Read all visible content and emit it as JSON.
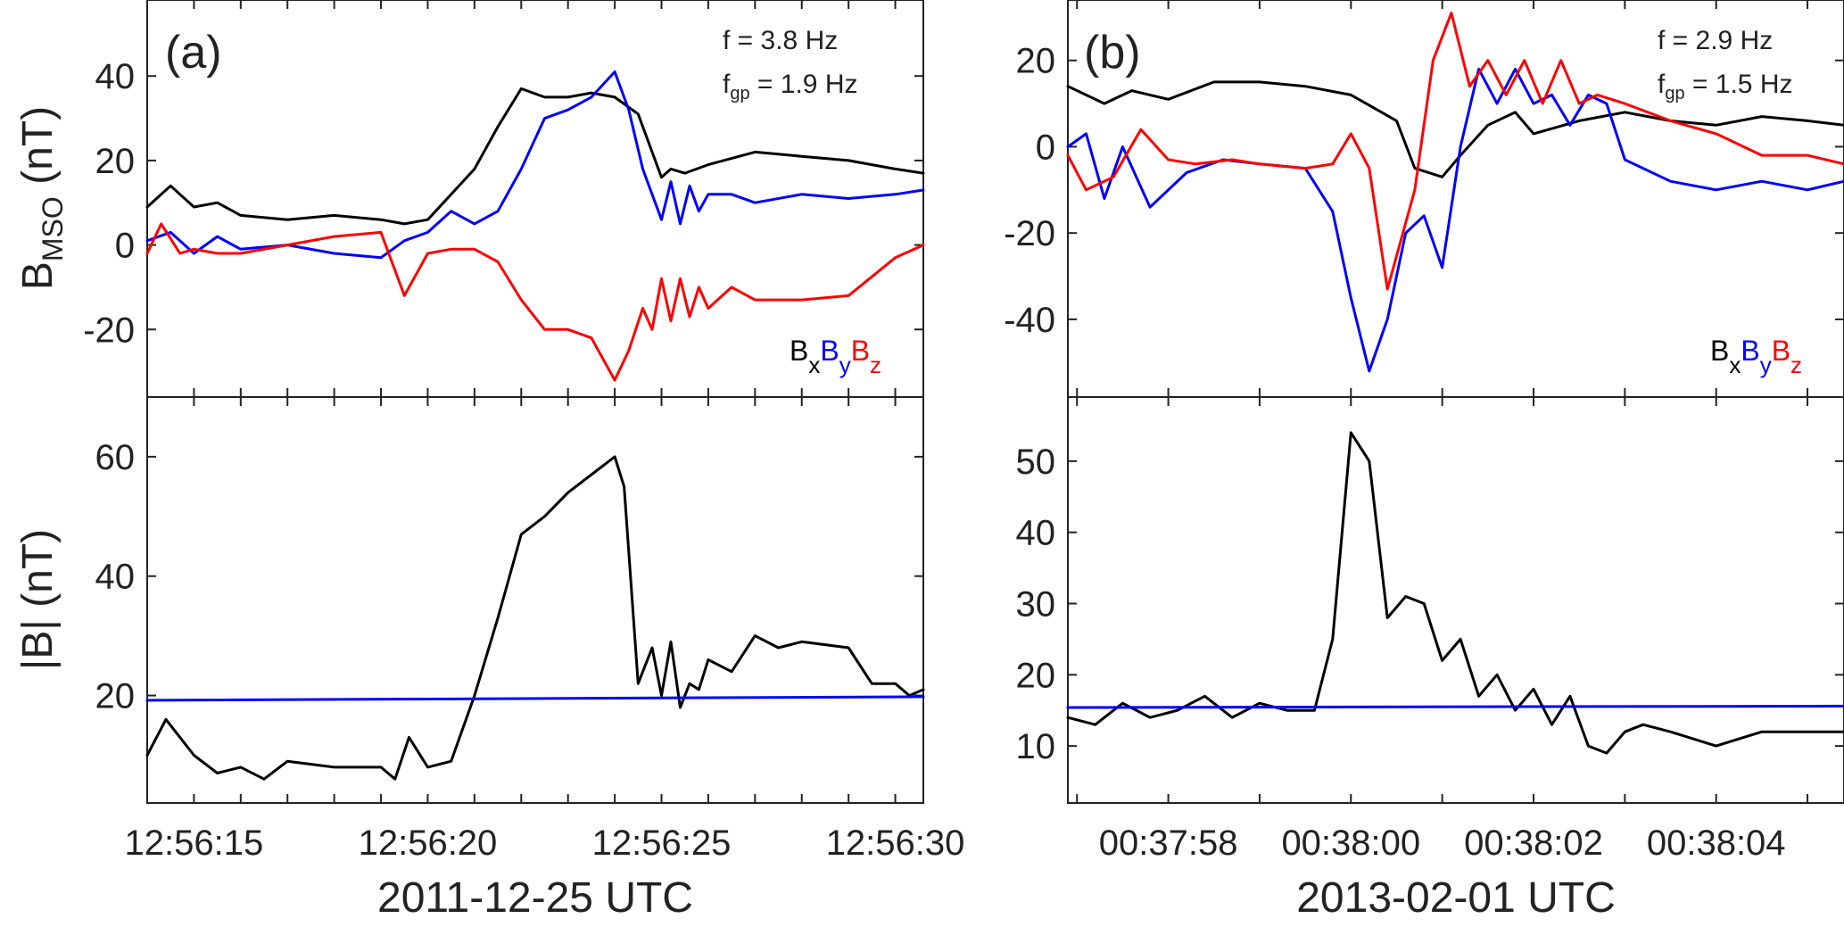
{
  "figure": {
    "colors": {
      "bx": "#000000",
      "by": "#0000ff",
      "bz": "#ff0000",
      "ref": "#0000ff",
      "axis": "#222222"
    }
  },
  "chart_data": [
    {
      "id": "a_top",
      "type": "line",
      "panel_label": "(a)",
      "ylabel_main": "B",
      "ylabel_sub": "MSO",
      "ylabel_unit": " (nT)",
      "xlim": [
        14,
        30.6
      ],
      "ylim": [
        -36,
        58
      ],
      "yticks": [
        -20,
        0,
        20,
        40
      ],
      "xticks": [
        15,
        20,
        25,
        30
      ],
      "annotations": {
        "f": "f = 3.8 Hz",
        "fgp_prefix": "f",
        "fgp_sub": "gp",
        "fgp_value": " = 1.9 Hz"
      },
      "legend": {
        "b1": "B",
        "s1": "x",
        "b2": "B",
        "s2": "y",
        "b3": "B",
        "s3": "z"
      },
      "series": [
        {
          "name": "Bx",
          "color": "#000000",
          "x": [
            14,
            14.5,
            15,
            15.5,
            16,
            17,
            18,
            19,
            19.5,
            20,
            20.5,
            21,
            21.5,
            22,
            22.5,
            23,
            23.5,
            24,
            24.5,
            24.8,
            25,
            25.2,
            25.5,
            26,
            27,
            28,
            29,
            30,
            30.6
          ],
          "y": [
            9,
            14,
            9,
            10,
            7,
            6,
            7,
            6,
            5,
            6,
            12,
            18,
            28,
            37,
            35,
            35,
            36,
            35,
            31,
            22,
            16,
            18,
            17,
            19,
            22,
            21,
            20,
            18,
            17
          ]
        },
        {
          "name": "By",
          "color": "#0000ff",
          "x": [
            14,
            14.5,
            15,
            15.5,
            16,
            17,
            18,
            19,
            19.5,
            20,
            20.5,
            21,
            21.5,
            22,
            22.5,
            23,
            23.5,
            24,
            24.3,
            24.6,
            24.8,
            25,
            25.2,
            25.4,
            25.6,
            25.8,
            26,
            26.5,
            27,
            28,
            29,
            30,
            30.6
          ],
          "y": [
            1,
            3,
            -2,
            2,
            -1,
            0,
            -2,
            -3,
            1,
            3,
            8,
            5,
            8,
            18,
            30,
            32,
            35,
            41,
            32,
            18,
            12,
            6,
            15,
            5,
            14,
            8,
            12,
            12,
            10,
            12,
            11,
            12,
            13
          ]
        },
        {
          "name": "Bz",
          "color": "#ff0000",
          "x": [
            14,
            14.3,
            14.7,
            15,
            15.5,
            16,
            17,
            18,
            19,
            19.5,
            20,
            20.5,
            21,
            21.5,
            22,
            22.5,
            23,
            23.5,
            24,
            24.3,
            24.6,
            24.8,
            25,
            25.2,
            25.4,
            25.6,
            25.8,
            26,
            26.5,
            27,
            28,
            29,
            30,
            30.6
          ],
          "y": [
            -2,
            5,
            -2,
            -1,
            -2,
            -2,
            0,
            2,
            3,
            -12,
            -2,
            -1,
            -1,
            -4,
            -13,
            -20,
            -20,
            -22,
            -32,
            -25,
            -15,
            -20,
            -8,
            -18,
            -8,
            -17,
            -10,
            -15,
            -10,
            -13,
            -13,
            -12,
            -3,
            0
          ]
        }
      ]
    },
    {
      "id": "a_bottom",
      "type": "line",
      "ylabel": "|B| (nT)",
      "xlim": [
        14,
        30.6
      ],
      "ylim": [
        2,
        70
      ],
      "yticks": [
        20,
        40,
        60
      ],
      "xticks": [
        15,
        20,
        25,
        30
      ],
      "xticklabels": [
        "12:56:15",
        "12:56:20",
        "12:56:25",
        "12:56:30"
      ],
      "xlabel": "2011-12-25 UTC",
      "series": [
        {
          "name": "|B|",
          "color": "#000000",
          "x": [
            14,
            14.4,
            14.8,
            15,
            15.5,
            16,
            16.5,
            17,
            18,
            19,
            19.3,
            19.6,
            20,
            20.5,
            21,
            21.5,
            22,
            22.5,
            23,
            23.5,
            24,
            24.2,
            24.5,
            24.8,
            25,
            25.2,
            25.4,
            25.6,
            25.8,
            26,
            26.5,
            27,
            27.5,
            28,
            29,
            29.5,
            30,
            30.3,
            30.6
          ],
          "y": [
            10,
            16,
            12,
            10,
            7,
            8,
            6,
            9,
            8,
            8,
            6,
            13,
            8,
            9,
            20,
            33,
            47,
            50,
            54,
            57,
            60,
            55,
            22,
            28,
            20,
            29,
            18,
            22,
            21,
            26,
            24,
            30,
            28,
            29,
            28,
            22,
            22,
            20,
            21
          ]
        },
        {
          "name": "reference",
          "color": "#0000ff",
          "x": [
            14,
            30.6
          ],
          "y": [
            19.2,
            19.8
          ]
        }
      ]
    },
    {
      "id": "b_top",
      "type": "line",
      "panel_label": "(b)",
      "xlim": [
        56.9,
        65.4
      ],
      "ylim": [
        -58,
        34
      ],
      "yticks": [
        -40,
        -20,
        0,
        20
      ],
      "xticks": [
        58,
        60,
        62,
        64
      ],
      "annotations": {
        "f": "f = 2.9 Hz",
        "fgp_prefix": "f",
        "fgp_sub": "gp",
        "fgp_value": " = 1.5 Hz"
      },
      "legend": {
        "b1": "B",
        "s1": "x",
        "b2": "B",
        "s2": "y",
        "b3": "B",
        "s3": "z"
      },
      "series": [
        {
          "name": "Bx",
          "color": "#000000",
          "x": [
            56.9,
            57.3,
            57.6,
            58,
            58.5,
            59,
            59.5,
            60,
            60.5,
            60.7,
            61,
            61.2,
            61.5,
            61.8,
            62,
            62.5,
            63,
            63.5,
            64,
            64.5,
            65,
            65.4
          ],
          "y": [
            14,
            10,
            13,
            11,
            15,
            15,
            14,
            12,
            6,
            -5,
            -7,
            -2,
            5,
            8,
            3,
            6,
            8,
            6,
            5,
            7,
            6,
            5
          ]
        },
        {
          "name": "By",
          "color": "#0000ff",
          "x": [
            56.9,
            57.1,
            57.3,
            57.5,
            57.8,
            58.2,
            58.6,
            59,
            59.5,
            59.8,
            60,
            60.2,
            60.4,
            60.6,
            60.8,
            61,
            61.2,
            61.4,
            61.6,
            61.8,
            62,
            62.2,
            62.4,
            62.6,
            62.8,
            63,
            63.5,
            64,
            64.5,
            65,
            65.4
          ],
          "y": [
            0,
            3,
            -12,
            0,
            -14,
            -6,
            -3,
            -4,
            -5,
            -15,
            -35,
            -52,
            -40,
            -20,
            -16,
            -28,
            0,
            18,
            10,
            18,
            10,
            12,
            5,
            12,
            10,
            -3,
            -8,
            -10,
            -8,
            -10,
            -8
          ]
        },
        {
          "name": "Bz",
          "color": "#ff0000",
          "x": [
            56.9,
            57.1,
            57.4,
            57.7,
            58,
            58.3,
            58.7,
            59,
            59.5,
            59.8,
            60,
            60.2,
            60.4,
            60.7,
            60.9,
            61.1,
            61.3,
            61.5,
            61.7,
            61.9,
            62.1,
            62.3,
            62.5,
            62.7,
            63,
            63.5,
            64,
            64.5,
            65,
            65.4
          ],
          "y": [
            -2,
            -10,
            -7,
            4,
            -3,
            -4,
            -3,
            -4,
            -5,
            -4,
            3,
            -5,
            -33,
            -10,
            20,
            31,
            14,
            20,
            12,
            20,
            10,
            20,
            10,
            12,
            10,
            6,
            3,
            -2,
            -2,
            -4
          ]
        }
      ]
    },
    {
      "id": "b_bottom",
      "type": "line",
      "xlim": [
        56.9,
        65.4
      ],
      "ylim": [
        2,
        59
      ],
      "yticks": [
        10,
        20,
        30,
        40,
        50
      ],
      "xticks": [
        58,
        60,
        62,
        64
      ],
      "xticklabels": [
        "00:37:58",
        "00:38:00",
        "00:38:02",
        "00:38:04"
      ],
      "xlabel": "2013-02-01 UTC",
      "series": [
        {
          "name": "|B|",
          "color": "#000000",
          "x": [
            56.9,
            57.2,
            57.5,
            57.8,
            58.1,
            58.4,
            58.7,
            59,
            59.3,
            59.6,
            59.8,
            60,
            60.2,
            60.4,
            60.6,
            60.8,
            61,
            61.2,
            61.4,
            61.6,
            61.8,
            62,
            62.2,
            62.4,
            62.6,
            62.8,
            63,
            63.2,
            63.5,
            64,
            64.5,
            65,
            65.4
          ],
          "y": [
            14,
            13,
            16,
            14,
            15,
            17,
            14,
            16,
            15,
            15,
            25,
            54,
            50,
            28,
            31,
            30,
            22,
            25,
            17,
            20,
            15,
            18,
            13,
            17,
            10,
            9,
            12,
            13,
            12,
            10,
            12,
            12,
            12
          ]
        },
        {
          "name": "reference",
          "color": "#0000ff",
          "x": [
            56.9,
            65.4
          ],
          "y": [
            15.4,
            15.6
          ]
        }
      ]
    }
  ]
}
